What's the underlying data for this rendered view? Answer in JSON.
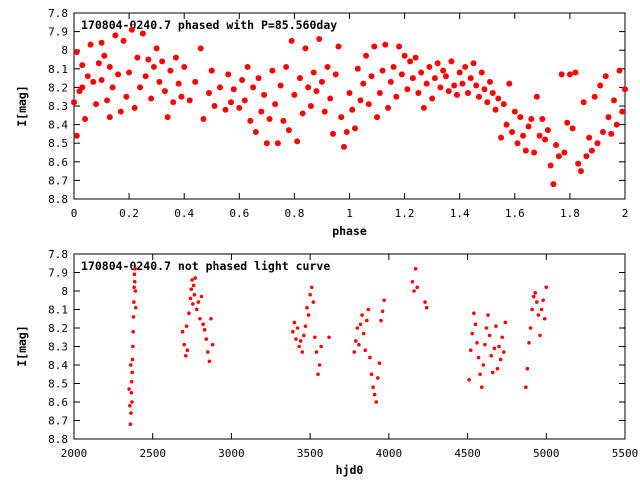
{
  "chart_data": [
    {
      "type": "scatter",
      "title": "170804-0240.7 phased with P=85.560day",
      "xlabel": "phase",
      "ylabel": "I[mag]",
      "xlim": [
        0,
        2
      ],
      "ylim": [
        8.8,
        7.8
      ],
      "y_inverted": true,
      "grid": false,
      "marker_color": "#ff0000",
      "marker": "dot",
      "x_ticks": [
        "0",
        "0.2",
        "0.4",
        "0.6",
        "0.8",
        "1",
        "1.2",
        "1.4",
        "1.6",
        "1.8",
        "2"
      ],
      "y_ticks": [
        "7.8",
        "7.9",
        "8",
        "8.1",
        "8.2",
        "8.3",
        "8.4",
        "8.5",
        "8.6",
        "8.7",
        "8.8"
      ],
      "points": [
        [
          0.0,
          8.28
        ],
        [
          0.01,
          8.01
        ],
        [
          0.01,
          8.46
        ],
        [
          0.02,
          8.22
        ],
        [
          0.03,
          8.2
        ],
        [
          0.03,
          8.08
        ],
        [
          0.04,
          8.37
        ],
        [
          0.05,
          8.14
        ],
        [
          0.06,
          7.97
        ],
        [
          0.07,
          8.17
        ],
        [
          0.08,
          8.29
        ],
        [
          0.09,
          8.07
        ],
        [
          0.1,
          7.96
        ],
        [
          0.1,
          8.16
        ],
        [
          0.11,
          8.03
        ],
        [
          0.12,
          8.27
        ],
        [
          0.13,
          8.09
        ],
        [
          0.13,
          8.36
        ],
        [
          0.14,
          8.2
        ],
        [
          0.15,
          7.92
        ],
        [
          0.16,
          8.13
        ],
        [
          0.17,
          8.33
        ],
        [
          0.18,
          7.95
        ],
        [
          0.19,
          8.25
        ],
        [
          0.2,
          8.12
        ],
        [
          0.21,
          7.89
        ],
        [
          0.22,
          8.31
        ],
        [
          0.23,
          8.04
        ],
        [
          0.24,
          8.2
        ],
        [
          0.25,
          7.91
        ],
        [
          0.26,
          8.14
        ],
        [
          0.27,
          8.05
        ],
        [
          0.28,
          8.26
        ],
        [
          0.29,
          8.09
        ],
        [
          0.3,
          7.99
        ],
        [
          0.31,
          8.17
        ],
        [
          0.32,
          8.06
        ],
        [
          0.33,
          8.22
        ],
        [
          0.34,
          8.36
        ],
        [
          0.35,
          8.11
        ],
        [
          0.36,
          8.28
        ],
        [
          0.37,
          8.04
        ],
        [
          0.38,
          8.18
        ],
        [
          0.39,
          8.25
        ],
        [
          0.4,
          8.09
        ],
        [
          0.42,
          8.27
        ],
        [
          0.44,
          8.17
        ],
        [
          0.46,
          7.99
        ],
        [
          0.47,
          8.37
        ],
        [
          0.49,
          8.23
        ],
        [
          0.5,
          8.11
        ],
        [
          0.51,
          8.3
        ],
        [
          0.53,
          8.2
        ],
        [
          0.55,
          8.32
        ],
        [
          0.56,
          8.13
        ],
        [
          0.57,
          8.28
        ],
        [
          0.58,
          8.21
        ],
        [
          0.6,
          8.31
        ],
        [
          0.61,
          8.16
        ],
        [
          0.62,
          8.27
        ],
        [
          0.63,
          8.09
        ],
        [
          0.64,
          8.38
        ],
        [
          0.65,
          8.2
        ],
        [
          0.66,
          8.44
        ],
        [
          0.67,
          8.15
        ],
        [
          0.68,
          8.33
        ],
        [
          0.69,
          8.24
        ],
        [
          0.7,
          8.5
        ],
        [
          0.71,
          8.37
        ],
        [
          0.72,
          8.11
        ],
        [
          0.73,
          8.29
        ],
        [
          0.74,
          8.5
        ],
        [
          0.75,
          8.19
        ],
        [
          0.76,
          8.38
        ],
        [
          0.77,
          8.09
        ],
        [
          0.78,
          8.43
        ],
        [
          0.79,
          7.95
        ],
        [
          0.8,
          8.24
        ],
        [
          0.81,
          8.49
        ],
        [
          0.82,
          8.15
        ],
        [
          0.83,
          8.34
        ],
        [
          0.84,
          7.99
        ],
        [
          0.85,
          8.2
        ],
        [
          0.86,
          8.3
        ],
        [
          0.87,
          8.12
        ],
        [
          0.88,
          8.22
        ],
        [
          0.89,
          7.94
        ],
        [
          0.9,
          8.17
        ],
        [
          0.91,
          8.33
        ],
        [
          0.92,
          8.09
        ],
        [
          0.93,
          8.26
        ],
        [
          0.94,
          8.45
        ],
        [
          0.95,
          8.13
        ],
        [
          0.96,
          7.98
        ],
        [
          0.97,
          8.36
        ],
        [
          0.98,
          8.52
        ],
        [
          0.99,
          8.44
        ],
        [
          1.0,
          8.23
        ],
        [
          1.01,
          8.32
        ],
        [
          1.02,
          8.42
        ],
        [
          1.03,
          8.1
        ],
        [
          1.04,
          8.27
        ],
        [
          1.05,
          8.18
        ],
        [
          1.06,
          8.03
        ],
        [
          1.07,
          8.29
        ],
        [
          1.08,
          8.14
        ],
        [
          1.09,
          7.98
        ],
        [
          1.1,
          8.36
        ],
        [
          1.11,
          8.23
        ],
        [
          1.12,
          8.11
        ],
        [
          1.13,
          7.97
        ],
        [
          1.14,
          8.31
        ],
        [
          1.15,
          8.17
        ],
        [
          1.16,
          8.09
        ],
        [
          1.17,
          8.25
        ],
        [
          1.18,
          7.98
        ],
        [
          1.19,
          8.13
        ],
        [
          1.2,
          8.03
        ],
        [
          1.21,
          8.21
        ],
        [
          1.22,
          8.06
        ],
        [
          1.23,
          8.15
        ],
        [
          1.24,
          8.04
        ],
        [
          1.25,
          8.23
        ],
        [
          1.26,
          8.12
        ],
        [
          1.27,
          8.31
        ],
        [
          1.28,
          8.18
        ],
        [
          1.29,
          8.09
        ],
        [
          1.3,
          8.26
        ],
        [
          1.31,
          8.15
        ],
        [
          1.32,
          8.07
        ],
        [
          1.33,
          8.2
        ],
        [
          1.34,
          8.11
        ],
        [
          1.35,
          8.14
        ],
        [
          1.36,
          8.22
        ],
        [
          1.37,
          8.06
        ],
        [
          1.38,
          8.19
        ],
        [
          1.39,
          8.24
        ],
        [
          1.4,
          8.12
        ],
        [
          1.41,
          8.18
        ],
        [
          1.42,
          8.09
        ],
        [
          1.43,
          8.23
        ],
        [
          1.44,
          8.15
        ],
        [
          1.45,
          8.07
        ],
        [
          1.46,
          8.19
        ],
        [
          1.47,
          8.25
        ],
        [
          1.48,
          8.12
        ],
        [
          1.49,
          8.21
        ],
        [
          1.5,
          8.28
        ],
        [
          1.51,
          8.17
        ],
        [
          1.52,
          8.23
        ],
        [
          1.53,
          8.32
        ],
        [
          1.54,
          8.26
        ],
        [
          1.55,
          8.47
        ],
        [
          1.56,
          8.29
        ],
        [
          1.57,
          8.4
        ],
        [
          1.58,
          8.18
        ],
        [
          1.59,
          8.44
        ],
        [
          1.6,
          8.33
        ],
        [
          1.61,
          8.5
        ],
        [
          1.62,
          8.36
        ],
        [
          1.63,
          8.46
        ],
        [
          1.64,
          8.54
        ],
        [
          1.65,
          8.41
        ],
        [
          1.66,
          8.37
        ],
        [
          1.67,
          8.55
        ],
        [
          1.68,
          8.25
        ],
        [
          1.69,
          8.46
        ],
        [
          1.7,
          8.37
        ],
        [
          1.71,
          8.48
        ],
        [
          1.72,
          8.43
        ],
        [
          1.73,
          8.62
        ],
        [
          1.74,
          8.72
        ],
        [
          1.75,
          8.51
        ],
        [
          1.76,
          8.57
        ],
        [
          1.77,
          8.13
        ],
        [
          1.78,
          8.55
        ],
        [
          1.79,
          8.39
        ],
        [
          1.8,
          8.13
        ],
        [
          1.81,
          8.42
        ],
        [
          1.82,
          8.12
        ],
        [
          1.83,
          8.61
        ],
        [
          1.84,
          8.65
        ],
        [
          1.85,
          8.28
        ],
        [
          1.86,
          8.57
        ],
        [
          1.87,
          8.47
        ],
        [
          1.88,
          8.54
        ],
        [
          1.89,
          8.25
        ],
        [
          1.9,
          8.5
        ],
        [
          1.91,
          8.19
        ],
        [
          1.92,
          8.44
        ],
        [
          1.93,
          8.14
        ],
        [
          1.94,
          8.36
        ],
        [
          1.95,
          8.45
        ],
        [
          1.96,
          8.27
        ],
        [
          1.97,
          8.4
        ],
        [
          1.98,
          8.11
        ],
        [
          1.99,
          8.33
        ],
        [
          2.0,
          8.21
        ]
      ]
    },
    {
      "type": "scatter",
      "title": "170804-0240.7 not phased light curve",
      "xlabel": "hjd0",
      "ylabel": "I[mag]",
      "xlim": [
        2000,
        5500
      ],
      "ylim": [
        8.8,
        7.8
      ],
      "y_inverted": true,
      "grid": false,
      "marker_color": "#ff0000",
      "marker": "dot",
      "x_ticks": [
        "2000",
        "2500",
        "3000",
        "3500",
        "4000",
        "4500",
        "5000",
        "5500"
      ],
      "y_ticks": [
        "7.8",
        "7.9",
        "8",
        "8.1",
        "8.2",
        "8.3",
        "8.4",
        "8.5",
        "8.6",
        "8.7",
        "8.8"
      ],
      "points": [
        [
          2350,
          8.53
        ],
        [
          2355,
          8.62
        ],
        [
          2358,
          8.72
        ],
        [
          2360,
          8.4
        ],
        [
          2362,
          8.66
        ],
        [
          2364,
          8.55
        ],
        [
          2366,
          8.49
        ],
        [
          2368,
          8.6
        ],
        [
          2370,
          8.44
        ],
        [
          2372,
          8.37
        ],
        [
          2374,
          8.3
        ],
        [
          2376,
          8.22
        ],
        [
          2378,
          8.14
        ],
        [
          2380,
          8.06
        ],
        [
          2382,
          7.98
        ],
        [
          2384,
          7.91
        ],
        [
          2386,
          7.95
        ],
        [
          2388,
          7.88
        ],
        [
          2390,
          8.0
        ],
        [
          2392,
          8.09
        ],
        [
          2690,
          8.22
        ],
        [
          2700,
          8.29
        ],
        [
          2710,
          8.35
        ],
        [
          2715,
          8.19
        ],
        [
          2720,
          8.32
        ],
        [
          2730,
          8.12
        ],
        [
          2740,
          8.04
        ],
        [
          2745,
          7.99
        ],
        [
          2750,
          7.94
        ],
        [
          2755,
          8.07
        ],
        [
          2760,
          7.97
        ],
        [
          2765,
          8.02
        ],
        [
          2770,
          7.93
        ],
        [
          2780,
          8.1
        ],
        [
          2790,
          8.06
        ],
        [
          2800,
          8.15
        ],
        [
          2810,
          8.03
        ],
        [
          2820,
          8.18
        ],
        [
          2830,
          8.21
        ],
        [
          2840,
          8.26
        ],
        [
          2850,
          8.33
        ],
        [
          2860,
          8.38
        ],
        [
          2870,
          8.15
        ],
        [
          2880,
          8.29
        ],
        [
          3390,
          8.22
        ],
        [
          3400,
          8.17
        ],
        [
          3410,
          8.26
        ],
        [
          3420,
          8.2
        ],
        [
          3430,
          8.3
        ],
        [
          3440,
          8.27
        ],
        [
          3450,
          8.33
        ],
        [
          3460,
          8.24
        ],
        [
          3470,
          8.19
        ],
        [
          3480,
          8.09
        ],
        [
          3490,
          8.13
        ],
        [
          3500,
          8.02
        ],
        [
          3510,
          7.98
        ],
        [
          3520,
          8.06
        ],
        [
          3530,
          8.25
        ],
        [
          3540,
          8.33
        ],
        [
          3550,
          8.45
        ],
        [
          3560,
          8.4
        ],
        [
          3570,
          8.3
        ],
        [
          3620,
          8.25
        ],
        [
          3780,
          8.33
        ],
        [
          3790,
          8.27
        ],
        [
          3800,
          8.2
        ],
        [
          3810,
          8.29
        ],
        [
          3820,
          8.18
        ],
        [
          3830,
          8.13
        ],
        [
          3840,
          8.23
        ],
        [
          3850,
          8.32
        ],
        [
          3860,
          8.16
        ],
        [
          3870,
          8.1
        ],
        [
          3880,
          8.36
        ],
        [
          3890,
          8.45
        ],
        [
          3900,
          8.52
        ],
        [
          3910,
          8.56
        ],
        [
          3920,
          8.6
        ],
        [
          3930,
          8.47
        ],
        [
          3940,
          8.39
        ],
        [
          3950,
          8.16
        ],
        [
          3960,
          8.11
        ],
        [
          3970,
          8.05
        ],
        [
          4150,
          7.95
        ],
        [
          4160,
          8.0
        ],
        [
          4170,
          7.88
        ],
        [
          4180,
          7.98
        ],
        [
          4230,
          8.06
        ],
        [
          4240,
          8.09
        ],
        [
          4510,
          8.48
        ],
        [
          4520,
          8.32
        ],
        [
          4530,
          8.23
        ],
        [
          4540,
          8.12
        ],
        [
          4550,
          8.18
        ],
        [
          4560,
          8.28
        ],
        [
          4570,
          8.36
        ],
        [
          4580,
          8.45
        ],
        [
          4590,
          8.52
        ],
        [
          4600,
          8.4
        ],
        [
          4610,
          8.29
        ],
        [
          4620,
          8.2
        ],
        [
          4630,
          8.13
        ],
        [
          4640,
          8.24
        ],
        [
          4650,
          8.35
        ],
        [
          4660,
          8.44
        ],
        [
          4670,
          8.31
        ],
        [
          4680,
          8.19
        ],
        [
          4690,
          8.42
        ],
        [
          4700,
          8.3
        ],
        [
          4710,
          8.37
        ],
        [
          4720,
          8.25
        ],
        [
          4730,
          8.33
        ],
        [
          4740,
          8.17
        ],
        [
          4870,
          8.52
        ],
        [
          4880,
          8.42
        ],
        [
          4890,
          8.28
        ],
        [
          4900,
          8.2
        ],
        [
          4910,
          8.1
        ],
        [
          4920,
          8.03
        ],
        [
          4930,
          8.01
        ],
        [
          4940,
          8.06
        ],
        [
          4950,
          8.13
        ],
        [
          4960,
          8.24
        ],
        [
          4970,
          8.1
        ],
        [
          4980,
          8.05
        ],
        [
          4990,
          8.15
        ],
        [
          5000,
          7.98
        ]
      ]
    }
  ]
}
